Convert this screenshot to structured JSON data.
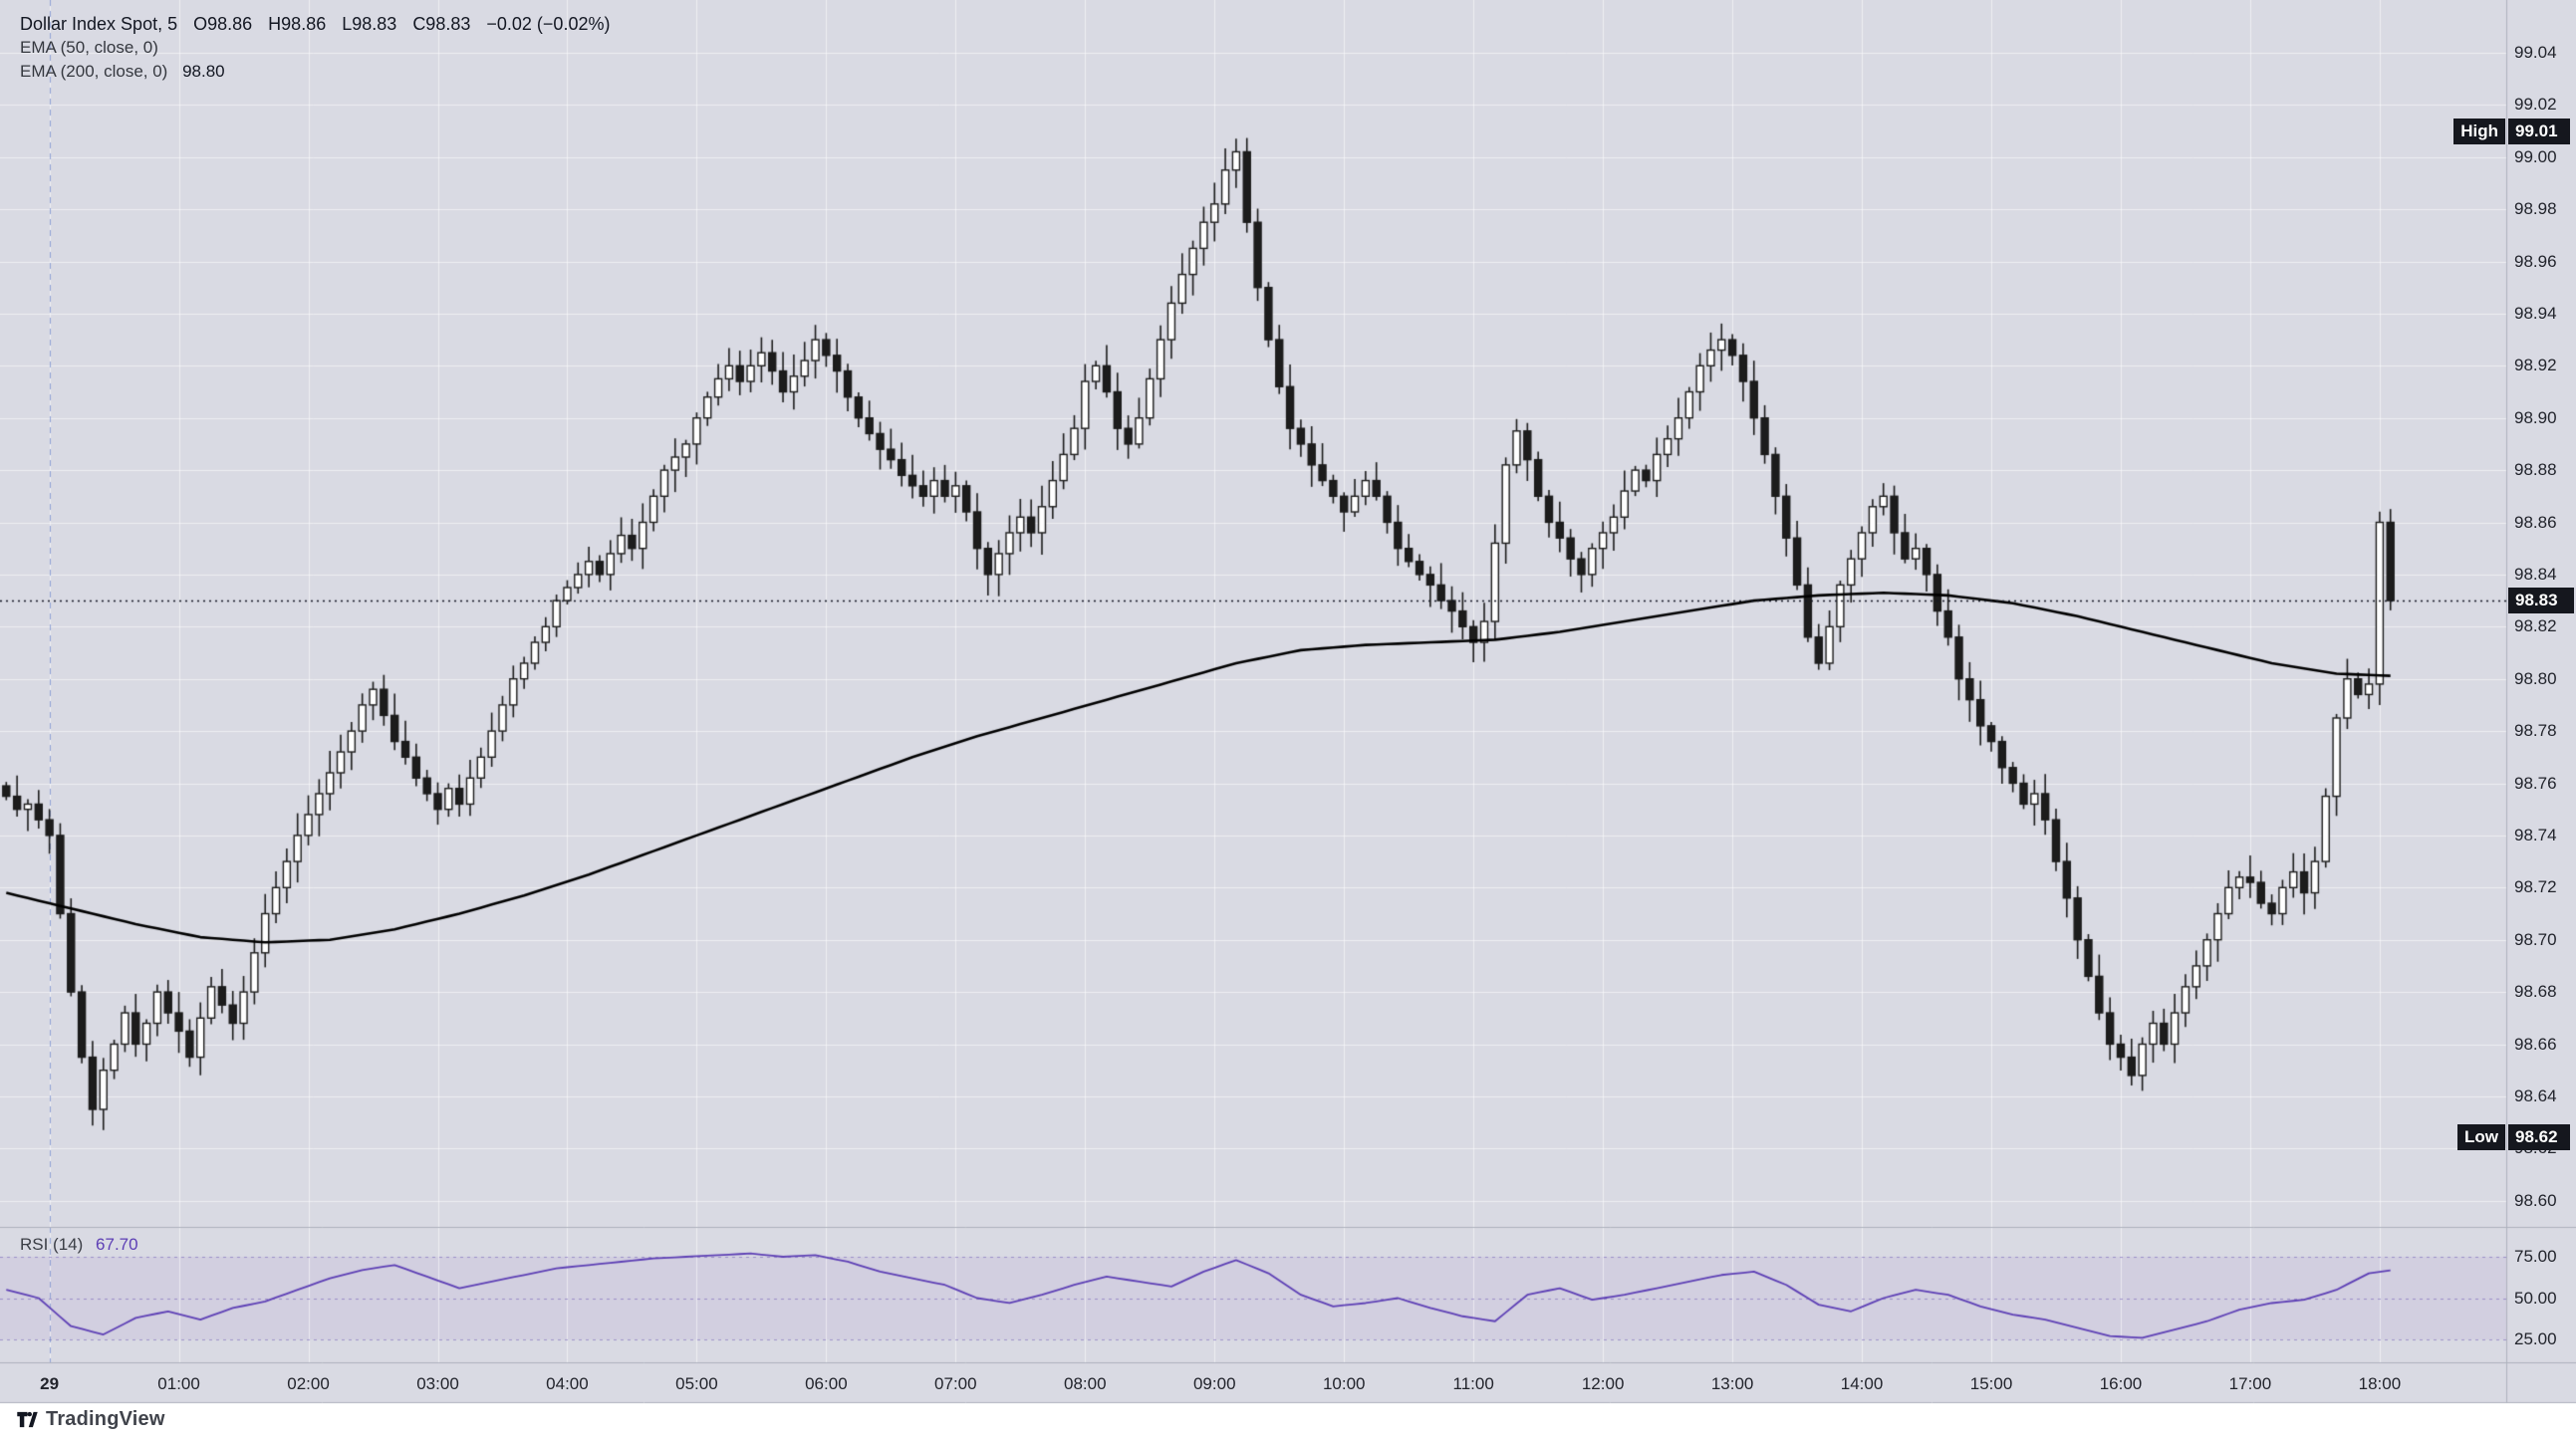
{
  "legend": {
    "line1": {
      "title": "Dollar Index Spot, 5",
      "tokens": [
        "O98.86",
        "H98.86",
        "L98.83",
        "C98.83",
        "−0.02 (−0.02%)"
      ]
    },
    "ema50_label": "EMA (50, close, 0)",
    "ema200_label": "EMA (200, close, 0)",
    "ema200_value": "98.80"
  },
  "badges": {
    "high_label": "High",
    "high_value": "99.01",
    "low_label": "Low",
    "low_value": "98.62",
    "last_value": "98.83"
  },
  "rsi_legend": {
    "label": "RSI (14)",
    "value": "67.70"
  },
  "price_axis": {
    "ticks": [
      "99.04",
      "99.02",
      "99.00",
      "98.98",
      "98.96",
      "98.94",
      "98.92",
      "98.90",
      "98.88",
      "98.86",
      "98.84",
      "98.82",
      "98.80",
      "98.78",
      "98.76",
      "98.74",
      "98.72",
      "98.70",
      "98.68",
      "98.66",
      "98.64",
      "98.62",
      "98.60"
    ]
  },
  "time_axis": {
    "ticks": [
      {
        "label": "29",
        "bar": 4,
        "bold": true
      },
      {
        "label": "01:00",
        "bar": 16
      },
      {
        "label": "02:00",
        "bar": 28
      },
      {
        "label": "03:00",
        "bar": 40
      },
      {
        "label": "04:00",
        "bar": 52
      },
      {
        "label": "05:00",
        "bar": 64
      },
      {
        "label": "06:00",
        "bar": 76
      },
      {
        "label": "07:00",
        "bar": 88
      },
      {
        "label": "08:00",
        "bar": 100
      },
      {
        "label": "09:00",
        "bar": 112
      },
      {
        "label": "10:00",
        "bar": 124
      },
      {
        "label": "11:00",
        "bar": 136
      },
      {
        "label": "12:00",
        "bar": 148
      },
      {
        "label": "13:00",
        "bar": 160
      },
      {
        "label": "14:00",
        "bar": 172
      },
      {
        "label": "15:00",
        "bar": 184
      },
      {
        "label": "16:00",
        "bar": 196
      },
      {
        "label": "17:00",
        "bar": 208
      },
      {
        "label": "18:00",
        "bar": 220
      }
    ]
  },
  "rsi_axis": {
    "ticks": [
      "75.00",
      "50.00",
      "25.00"
    ],
    "values": [
      75,
      50,
      25
    ]
  },
  "footer": {
    "logo_text": "TradingView"
  },
  "colors": {
    "background": "#d9dae3",
    "grid": "rgba(255,255,255,0.55)",
    "candle": "#1c1c1c",
    "candle_up_fill": "#ffffff",
    "ema200": "#000000",
    "rsi_line": "#5d3fb5",
    "rsi_band": "rgba(126,87,194,0.08)",
    "rsi_levels": "rgba(110,90,180,0.55)",
    "badge_bg": "#15171e",
    "separator": "#aeb1bd",
    "session_divider": "rgba(85,115,195,0.6)",
    "text": "#131722"
  },
  "chart_data": {
    "type": "candlestick",
    "symbol": "Dollar Index Spot",
    "interval_minutes": 5,
    "current_bar": {
      "o": 98.86,
      "h": 98.86,
      "l": 98.83,
      "c": 98.83,
      "change": -0.02,
      "change_pct": -0.02
    },
    "session_high": 99.01,
    "session_low": 98.62,
    "last_price": 98.83,
    "price_axis_range": [
      98.6,
      99.04
    ],
    "bars_before_midnight": 4,
    "closes": [
      98.755,
      98.75,
      98.752,
      98.746,
      98.74,
      98.71,
      98.68,
      98.655,
      98.635,
      98.65,
      98.66,
      98.672,
      98.66,
      98.668,
      98.68,
      98.672,
      98.665,
      98.655,
      98.67,
      98.682,
      98.675,
      98.668,
      98.68,
      98.695,
      98.71,
      98.72,
      98.73,
      98.74,
      98.748,
      98.756,
      98.764,
      98.772,
      98.78,
      98.79,
      98.796,
      98.786,
      98.776,
      98.77,
      98.762,
      98.756,
      98.75,
      98.758,
      98.752,
      98.762,
      98.77,
      98.78,
      98.79,
      98.8,
      98.806,
      98.814,
      98.82,
      98.83,
      98.835,
      98.84,
      98.845,
      98.84,
      98.848,
      98.855,
      98.85,
      98.86,
      98.87,
      98.88,
      98.885,
      98.89,
      98.9,
      98.908,
      98.915,
      98.92,
      98.914,
      98.92,
      98.925,
      98.918,
      98.91,
      98.916,
      98.922,
      98.93,
      98.924,
      98.918,
      98.908,
      98.9,
      98.894,
      98.888,
      98.884,
      98.878,
      98.874,
      98.87,
      98.876,
      98.87,
      98.874,
      98.864,
      98.85,
      98.84,
      98.848,
      98.856,
      98.862,
      98.856,
      98.866,
      98.876,
      98.886,
      98.896,
      98.914,
      98.92,
      98.91,
      98.896,
      98.89,
      98.9,
      98.915,
      98.93,
      98.944,
      98.955,
      98.965,
      98.975,
      98.982,
      98.995,
      99.002,
      98.975,
      98.95,
      98.93,
      98.912,
      98.896,
      98.89,
      98.882,
      98.876,
      98.87,
      98.864,
      98.87,
      98.876,
      98.87,
      98.86,
      98.85,
      98.845,
      98.84,
      98.836,
      98.83,
      98.826,
      98.82,
      98.814,
      98.822,
      98.852,
      98.882,
      98.895,
      98.884,
      98.87,
      98.86,
      98.854,
      98.846,
      98.84,
      98.85,
      98.856,
      98.862,
      98.872,
      98.88,
      98.876,
      98.886,
      98.892,
      98.9,
      98.91,
      98.92,
      98.926,
      98.93,
      98.924,
      98.914,
      98.9,
      98.886,
      98.87,
      98.854,
      98.836,
      98.816,
      98.806,
      98.82,
      98.836,
      98.846,
      98.856,
      98.866,
      98.87,
      98.856,
      98.846,
      98.85,
      98.84,
      98.826,
      98.816,
      98.8,
      98.792,
      98.782,
      98.776,
      98.766,
      98.76,
      98.752,
      98.756,
      98.746,
      98.73,
      98.716,
      98.7,
      98.686,
      98.672,
      98.66,
      98.655,
      98.648,
      98.66,
      98.668,
      98.66,
      98.672,
      98.682,
      98.69,
      98.7,
      98.71,
      98.72,
      98.724,
      98.722,
      98.714,
      98.71,
      98.72,
      98.726,
      98.718,
      98.73,
      98.755,
      98.785,
      98.8,
      98.794,
      98.798,
      98.86,
      98.83
    ],
    "ema200": {
      "sample_interval_bars": 6,
      "values": [
        98.718,
        98.712,
        98.706,
        98.701,
        98.699,
        98.7,
        98.704,
        98.71,
        98.717,
        98.725,
        98.734,
        98.743,
        98.752,
        98.761,
        98.77,
        98.778,
        98.785,
        98.792,
        98.799,
        98.806,
        98.811,
        98.813,
        98.814,
        98.815,
        98.818,
        98.822,
        98.826,
        98.83,
        98.832,
        98.833,
        98.832,
        98.829,
        98.824,
        98.818,
        98.812,
        98.806,
        98.802,
        98.801
      ]
    },
    "rsi": {
      "period": 14,
      "current_value": 67.7,
      "levels": [
        75,
        50,
        25
      ],
      "sample_interval_bars": 3,
      "values": [
        55,
        50,
        33,
        28,
        38,
        42,
        37,
        44,
        48,
        55,
        62,
        67,
        70,
        63,
        56,
        60,
        64,
        68,
        70,
        72,
        74,
        75,
        76,
        77,
        75,
        76,
        72,
        66,
        62,
        58,
        50,
        47,
        52,
        58,
        63,
        60,
        57,
        66,
        73,
        65,
        52,
        45,
        47,
        50,
        44,
        39,
        36,
        52,
        56,
        49,
        52,
        56,
        60,
        64,
        66,
        58,
        46,
        42,
        50,
        55,
        52,
        45,
        40,
        37,
        32,
        27,
        26,
        31,
        36,
        43,
        47,
        49,
        55,
        65,
        67.7
      ]
    }
  }
}
